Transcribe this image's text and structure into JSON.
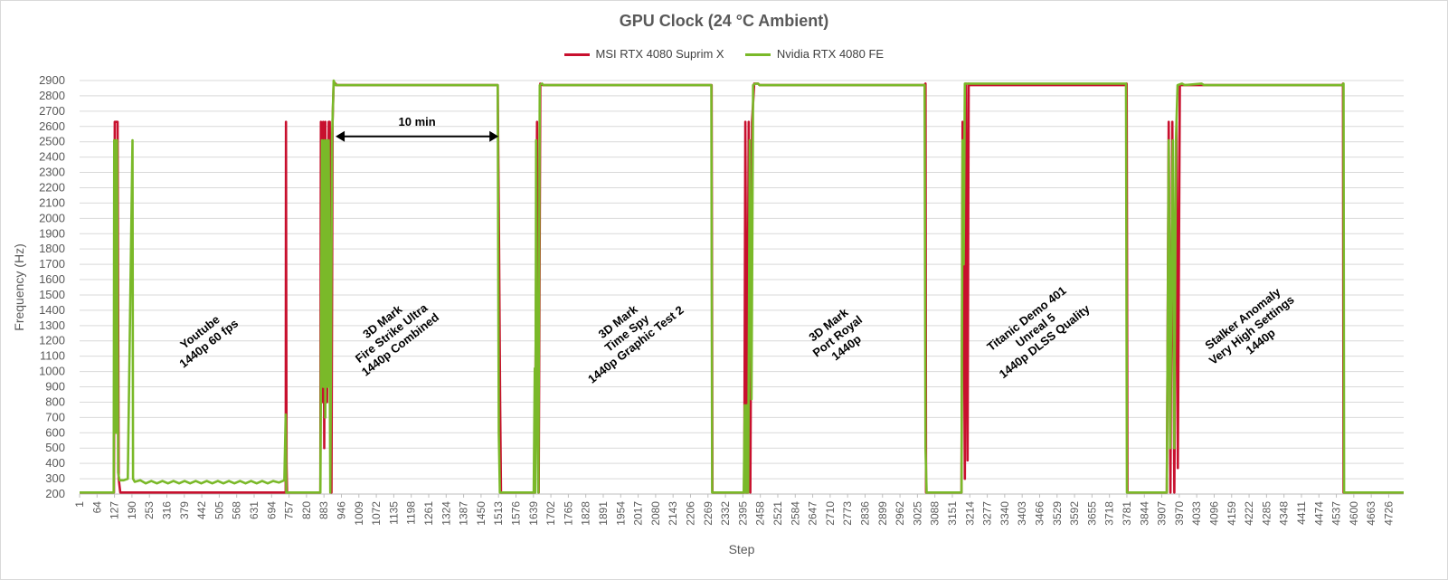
{
  "chart_data": {
    "type": "line",
    "title": "GPU Clock (24 °C Ambient)",
    "xlabel": "Step",
    "ylabel": "Frequency (Hz)",
    "xlim": [
      1,
      4780
    ],
    "ylim": [
      200,
      2900
    ],
    "ytick_step": 100,
    "x_ticks": [
      1,
      64,
      127,
      190,
      253,
      316,
      379,
      442,
      505,
      568,
      631,
      694,
      757,
      820,
      883,
      946,
      1009,
      1072,
      1135,
      1198,
      1261,
      1324,
      1387,
      1450,
      1513,
      1576,
      1639,
      1702,
      1765,
      1828,
      1891,
      1954,
      2017,
      2080,
      2143,
      2206,
      2269,
      2332,
      2395,
      2458,
      2521,
      2584,
      2647,
      2710,
      2773,
      2836,
      2899,
      2962,
      3025,
      3088,
      3151,
      3214,
      3277,
      3340,
      3403,
      3466,
      3529,
      3592,
      3655,
      3718,
      3781,
      3844,
      3907,
      3970,
      4033,
      4096,
      4159,
      4222,
      4285,
      4348,
      4411,
      4474,
      4537,
      4600,
      4663,
      4726
    ],
    "grid": "horizontal",
    "legend_position": "top",
    "series": [
      {
        "name": "MSI RTX 4080 Suprim X",
        "color": "#c8102e",
        "points": [
          [
            1,
            210
          ],
          [
            125,
            210
          ],
          [
            128,
            2630
          ],
          [
            132,
            2630
          ],
          [
            135,
            2630
          ],
          [
            138,
            2630
          ],
          [
            142,
            300
          ],
          [
            148,
            210
          ],
          [
            200,
            210
          ],
          [
            400,
            210
          ],
          [
            600,
            210
          ],
          [
            745,
            210
          ],
          [
            746,
            2630
          ],
          [
            748,
            400
          ],
          [
            750,
            210
          ],
          [
            870,
            210
          ],
          [
            872,
            2630
          ],
          [
            876,
            800
          ],
          [
            880,
            2630
          ],
          [
            884,
            500
          ],
          [
            888,
            2630
          ],
          [
            894,
            800
          ],
          [
            900,
            2630
          ],
          [
            904,
            2630
          ],
          [
            910,
            210
          ],
          [
            914,
            2630
          ],
          [
            918,
            2880
          ],
          [
            925,
            2880
          ],
          [
            928,
            2870
          ],
          [
            1510,
            2870
          ],
          [
            1515,
            1800
          ],
          [
            1519,
            780
          ],
          [
            1522,
            210
          ],
          [
            1640,
            210
          ],
          [
            1644,
            210
          ],
          [
            1652,
            2630
          ],
          [
            1658,
            210
          ],
          [
            1664,
            2880
          ],
          [
            1672,
            2870
          ],
          [
            2282,
            2870
          ],
          [
            2285,
            210
          ],
          [
            2400,
            210
          ],
          [
            2404,
            2630
          ],
          [
            2410,
            210
          ],
          [
            2416,
            2630
          ],
          [
            2422,
            210
          ],
          [
            2428,
            2630
          ],
          [
            2436,
            2880
          ],
          [
            2450,
            2880
          ],
          [
            2455,
            2870
          ],
          [
            3050,
            2870
          ],
          [
            3054,
            2880
          ],
          [
            3056,
            210
          ],
          [
            3110,
            210
          ],
          [
            3184,
            210
          ],
          [
            3188,
            2630
          ],
          [
            3192,
            1800
          ],
          [
            3196,
            300
          ],
          [
            3200,
            2880
          ],
          [
            3206,
            420
          ],
          [
            3210,
            2880
          ],
          [
            3214,
            2870
          ],
          [
            3778,
            2870
          ],
          [
            3780,
            2880
          ],
          [
            3783,
            210
          ],
          [
            3925,
            210
          ],
          [
            3932,
            2630
          ],
          [
            3938,
            210
          ],
          [
            3945,
            2630
          ],
          [
            3952,
            210
          ],
          [
            3960,
            2630
          ],
          [
            3965,
            370
          ],
          [
            3972,
            2870
          ],
          [
            4046,
            2870
          ],
          [
            4560,
            2870
          ],
          [
            4561,
            2880
          ],
          [
            4563,
            210
          ],
          [
            4780,
            210
          ]
        ]
      },
      {
        "name": "Nvidia RTX 4080 FE",
        "color": "#7ab929",
        "points": [
          [
            1,
            210
          ],
          [
            124,
            210
          ],
          [
            126,
            2510
          ],
          [
            128,
            1300
          ],
          [
            130,
            2510
          ],
          [
            133,
            600
          ],
          [
            136,
            2510
          ],
          [
            140,
            340
          ],
          [
            145,
            290
          ],
          [
            160,
            290
          ],
          [
            175,
            300
          ],
          [
            192,
            2510
          ],
          [
            194,
            300
          ],
          [
            200,
            280
          ],
          [
            220,
            290
          ],
          [
            240,
            270
          ],
          [
            260,
            285
          ],
          [
            280,
            270
          ],
          [
            300,
            285
          ],
          [
            320,
            270
          ],
          [
            340,
            285
          ],
          [
            360,
            270
          ],
          [
            380,
            285
          ],
          [
            400,
            270
          ],
          [
            420,
            285
          ],
          [
            440,
            270
          ],
          [
            460,
            285
          ],
          [
            480,
            270
          ],
          [
            500,
            285
          ],
          [
            520,
            270
          ],
          [
            540,
            285
          ],
          [
            560,
            270
          ],
          [
            580,
            285
          ],
          [
            600,
            270
          ],
          [
            620,
            285
          ],
          [
            640,
            270
          ],
          [
            660,
            285
          ],
          [
            680,
            270
          ],
          [
            700,
            285
          ],
          [
            720,
            275
          ],
          [
            740,
            290
          ],
          [
            745,
            720
          ],
          [
            747,
            210
          ],
          [
            870,
            210
          ],
          [
            876,
            2510
          ],
          [
            880,
            900
          ],
          [
            884,
            2510
          ],
          [
            888,
            700
          ],
          [
            892,
            2510
          ],
          [
            896,
            900
          ],
          [
            900,
            2510
          ],
          [
            906,
            210
          ],
          [
            912,
            2510
          ],
          [
            918,
            2900
          ],
          [
            925,
            2870
          ],
          [
            1505,
            2870
          ],
          [
            1510,
            2870
          ],
          [
            1514,
            600
          ],
          [
            1518,
            210
          ],
          [
            1640,
            210
          ],
          [
            1644,
            1020
          ],
          [
            1646,
            210
          ],
          [
            1649,
            2510
          ],
          [
            1652,
            900
          ],
          [
            1657,
            210
          ],
          [
            1662,
            2870
          ],
          [
            1670,
            2880
          ],
          [
            1675,
            2870
          ],
          [
            2281,
            2870
          ],
          [
            2284,
            210
          ],
          [
            2398,
            210
          ],
          [
            2402,
            780
          ],
          [
            2406,
            210
          ],
          [
            2410,
            780
          ],
          [
            2414,
            210
          ],
          [
            2420,
            2510
          ],
          [
            2426,
            820
          ],
          [
            2432,
            2870
          ],
          [
            2440,
            2880
          ],
          [
            2450,
            2880
          ],
          [
            2455,
            2870
          ],
          [
            3051,
            2870
          ],
          [
            3054,
            500
          ],
          [
            3058,
            210
          ],
          [
            3184,
            210
          ],
          [
            3188,
            2510
          ],
          [
            3192,
            1700
          ],
          [
            3196,
            2880
          ],
          [
            3202,
            2880
          ],
          [
            3206,
            2880
          ],
          [
            3214,
            2880
          ],
          [
            3778,
            2880
          ],
          [
            3781,
            210
          ],
          [
            3925,
            210
          ],
          [
            3932,
            2510
          ],
          [
            3937,
            500
          ],
          [
            3942,
            1700
          ],
          [
            3947,
            2510
          ],
          [
            3952,
            500
          ],
          [
            3958,
            2510
          ],
          [
            3964,
            2870
          ],
          [
            3980,
            2880
          ],
          [
            3990,
            2870
          ],
          [
            4050,
            2880
          ],
          [
            4060,
            2870
          ],
          [
            4560,
            2870
          ],
          [
            4563,
            2880
          ],
          [
            4565,
            210
          ],
          [
            4780,
            210
          ]
        ]
      }
    ],
    "annotations": [
      {
        "lines": [
          "Youtube",
          "1440p 60 fps"
        ],
        "x": 460,
        "y": 1200
      },
      {
        "lines": [
          "3D Mark",
          "Fire Strike Ultra",
          "1440p Combined"
        ],
        "x": 1135,
        "y": 1230
      },
      {
        "lines": [
          "3D Mark",
          "Time Spy",
          "1440p Graphic Test 2"
        ],
        "x": 1985,
        "y": 1230
      },
      {
        "lines": [
          "3D Mark",
          "Port Royal",
          "1440p"
        ],
        "x": 2745,
        "y": 1210
      },
      {
        "lines": [
          "Titanic Demo 401",
          "Unreal 5",
          "1440p DLSS Quality"
        ],
        "x": 3460,
        "y": 1250
      },
      {
        "lines": [
          "Stalker Anomaly",
          "Very High Settings",
          "1440p"
        ],
        "x": 4240,
        "y": 1250
      }
    ],
    "span_annotation": {
      "label": "10 min",
      "x_start": 925,
      "x_end": 1513,
      "y": 2600
    }
  }
}
